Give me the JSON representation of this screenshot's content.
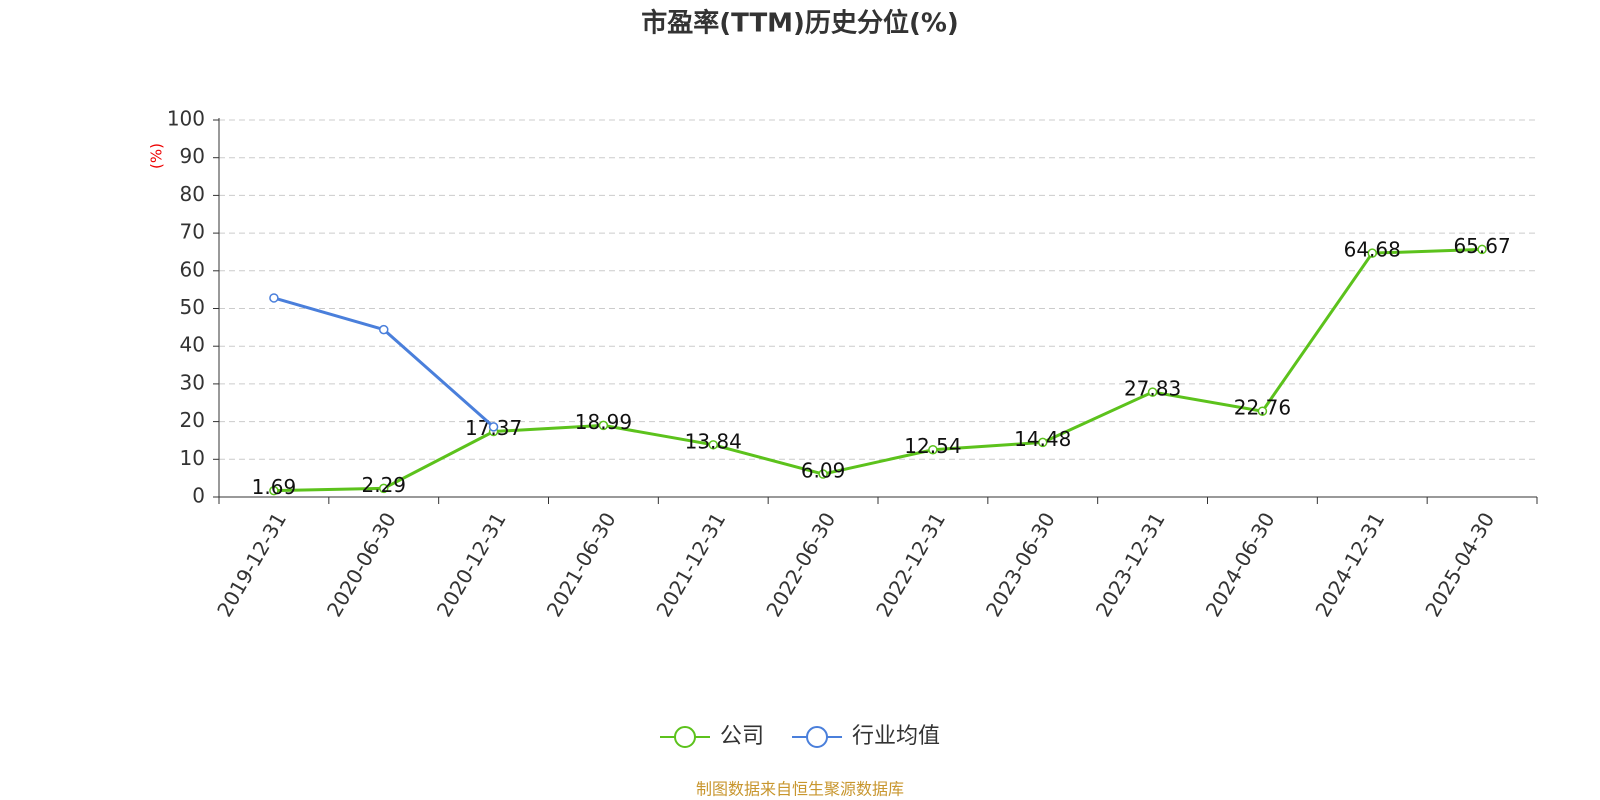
{
  "chart_data": {
    "type": "line",
    "title": "市盈率(TTM)历史分位(%)",
    "y_label": "(%)",
    "categories": [
      "2019-12-31",
      "2020-06-30",
      "2020-12-31",
      "2021-06-30",
      "2021-12-31",
      "2022-06-30",
      "2022-12-31",
      "2023-06-30",
      "2023-12-31",
      "2024-06-30",
      "2024-12-31",
      "2025-04-30"
    ],
    "series": [
      {
        "name": "公司",
        "color": "#5cc21c",
        "values": [
          1.69,
          2.29,
          17.37,
          18.99,
          13.84,
          6.09,
          12.54,
          14.48,
          27.83,
          22.76,
          64.68,
          65.67
        ],
        "show_labels": true
      },
      {
        "name": "行业均值",
        "color": "#4a7fdb",
        "values": [
          52.8,
          44.4,
          18.6,
          null,
          null,
          null,
          null,
          null,
          null,
          null,
          null,
          null
        ],
        "show_labels": false
      }
    ],
    "ylim": [
      0,
      100
    ],
    "yticks": [
      0,
      10,
      20,
      30,
      40,
      50,
      60,
      70,
      80,
      90,
      100
    ],
    "grid": true,
    "source": "制图数据来自恒生聚源数据库"
  }
}
